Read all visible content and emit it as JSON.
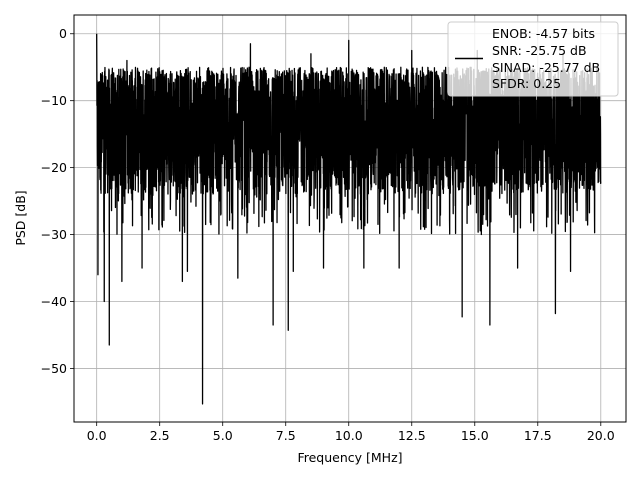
{
  "chart_data": {
    "type": "line",
    "title": "",
    "xlabel": "Frequency [MHz]",
    "ylabel": "PSD [dB]",
    "xlim": [
      -0.9,
      21.0
    ],
    "ylim": [
      -58.0,
      2.8
    ],
    "xticks": [
      0.0,
      2.5,
      5.0,
      7.5,
      10.0,
      12.5,
      15.0,
      17.5,
      20.0
    ],
    "xtick_labels": [
      "0.0",
      "2.5",
      "5.0",
      "7.5",
      "10.0",
      "12.5",
      "15.0",
      "17.5",
      "20.0"
    ],
    "yticks": [
      0,
      -10,
      -20,
      -30,
      -40,
      -50
    ],
    "ytick_labels": [
      "0",
      "−10",
      "−20",
      "−30",
      "−40",
      "−50"
    ],
    "grid": true,
    "legend": {
      "placement": "upper right",
      "entries": [
        "ENOB: -4.57 bits",
        "SNR: -25.75 dB",
        "SINAD: -25.77 dB",
        "SFDR: 0.25"
      ]
    },
    "series": [
      {
        "color": "#000000",
        "x_range": [
          0.0,
          20.0
        ],
        "typical_band_db": [
          -24,
          -5
        ],
        "peak_max_db": 0.0,
        "notable_points": [
          {
            "x": 0.0,
            "y": 0.0
          },
          {
            "x": 0.05,
            "y": -36.0
          },
          {
            "x": 0.3,
            "y": -40.0
          },
          {
            "x": 0.5,
            "y": -46.5
          },
          {
            "x": 1.0,
            "y": -37.0
          },
          {
            "x": 1.8,
            "y": -35.0
          },
          {
            "x": 3.4,
            "y": -37.0
          },
          {
            "x": 3.6,
            "y": -35.5
          },
          {
            "x": 4.2,
            "y": -55.3
          },
          {
            "x": 5.6,
            "y": -36.5
          },
          {
            "x": 7.0,
            "y": -43.5
          },
          {
            "x": 7.6,
            "y": -44.3
          },
          {
            "x": 7.8,
            "y": -35.5
          },
          {
            "x": 9.0,
            "y": -35.0
          },
          {
            "x": 10.6,
            "y": -35.0
          },
          {
            "x": 12.0,
            "y": -35.0
          },
          {
            "x": 14.5,
            "y": -42.3
          },
          {
            "x": 15.6,
            "y": -43.5
          },
          {
            "x": 16.7,
            "y": -35.0
          },
          {
            "x": 18.2,
            "y": -41.8
          },
          {
            "x": 18.8,
            "y": -35.5
          },
          {
            "x": 6.1,
            "y": -1.5
          },
          {
            "x": 10.0,
            "y": -1.0
          },
          {
            "x": 15.1,
            "y": -2.5
          },
          {
            "x": 1.2,
            "y": -4.0
          },
          {
            "x": 8.5,
            "y": -3.0
          },
          {
            "x": 12.5,
            "y": -2.5
          },
          {
            "x": 18.5,
            "y": -3.0
          }
        ]
      }
    ]
  }
}
